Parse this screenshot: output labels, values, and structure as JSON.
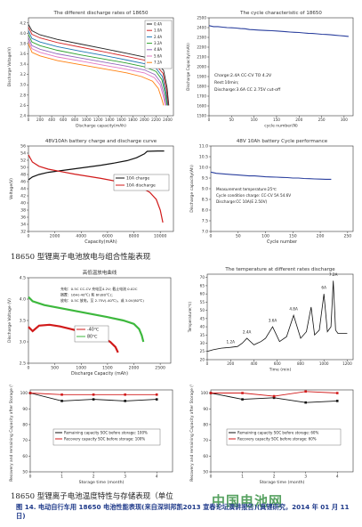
{
  "charts": {
    "c1": {
      "title": "The different discharge rates of 18650",
      "xlabel": "Discharge capacity(mAh)",
      "ylabel": "Discharge Voltage(V)",
      "xticks": [
        "0",
        "200",
        "400",
        "600",
        "800",
        "1000",
        "1200",
        "1400",
        "1600",
        "1800",
        "2000",
        "2200",
        "2400"
      ],
      "yticks": [
        "2.4",
        "2.6",
        "2.8",
        "3.0",
        "3.2",
        "3.4",
        "3.6",
        "3.8",
        "4.0",
        "4.2"
      ],
      "legend": [
        "0.4A",
        "1.0A",
        "2.4A",
        "3.2A",
        "4.8A",
        "5.6A",
        "7.2A"
      ],
      "colors": [
        "#222222",
        "#d62728",
        "#1f77b4",
        "#2ca02c",
        "#9467bd",
        "#e377c2",
        "#ff7f0e"
      ]
    },
    "c2": {
      "title": "The cycle characteristic of 18650",
      "xlabel": "cycle number(N)",
      "ylabel": "Discharge Capacity(mAh)",
      "xticks": [
        "0",
        "50",
        "100",
        "150",
        "200",
        "250",
        "300"
      ],
      "yticks": [
        "1500",
        "1600",
        "1700",
        "1800",
        "1900",
        "2000",
        "2100",
        "2200",
        "2300",
        "2400",
        "2500"
      ],
      "notes": [
        "Charge:2.4A CC-CV TO 4.2V",
        "Rest:10min;",
        "Discharge:3.6A CC 2.75V cut-off"
      ]
    },
    "c3": {
      "title": "48V10Ah battery charge and discharge curve",
      "xlabel": "Capacity(mAh)",
      "ylabel": "Voltage(V)",
      "xticks": [
        "0",
        "2000",
        "4000",
        "6000",
        "8000",
        "10000"
      ],
      "yticks": [
        "32",
        "34",
        "36",
        "38",
        "40",
        "42",
        "44",
        "46",
        "48",
        "50",
        "52",
        "54",
        "56"
      ],
      "legend": [
        "10A charge",
        "10A discharge"
      ]
    },
    "c4": {
      "title": "48V 10Ah battery Cycle performance",
      "xlabel": "Cycle number",
      "ylabel": "Discharge capacity(Ah)",
      "xticks": [
        "0",
        "50",
        "100",
        "150",
        "200",
        "250"
      ],
      "yticks": [
        "7.0",
        "7.5",
        "8.0",
        "8.5",
        "9.0",
        "9.5",
        "10.0",
        "10.5",
        "11.0"
      ],
      "notes": [
        "Measurement temperature:25℃",
        "Cycle condition charge: CC-CV 5A 54.6V",
        "Discharge:CC 10A(E 2.50V)"
      ]
    },
    "c5": {
      "title": "高低温放电曲线",
      "xlabel": "Discharge Capacity (mAh)",
      "ylabel": "Discharge Voltage (V)",
      "xticks": [
        "0",
        "500",
        "1000",
        "1500",
        "2000",
        "2500"
      ],
      "yticks": [
        "2.5",
        "3.0",
        "3.5",
        "4.0",
        "4.5"
      ],
      "legend": [
        "-40℃",
        "80℃"
      ],
      "notes": [
        "充电：0.5C CC-CV 充电至4.2V;  截止电流 0.02C",
        "搁置：16H(-40℃) 和 6h(80℃)；",
        "放电：0.5C 放电，至 2.75V(-40℃)，或 3.0V(80℃)"
      ]
    },
    "c6": {
      "title": "The temperature at different rates discharge",
      "xlabel": "Time (min)",
      "ylabel": "Temperature(℃)",
      "xticks": [
        "0",
        "200",
        "400",
        "600",
        "800",
        "1000",
        "1200"
      ],
      "yticks": [
        "20",
        "25",
        "30",
        "35",
        "40",
        "45",
        "50",
        "55",
        "60",
        "65",
        "70"
      ],
      "annotations": [
        "1.2A",
        "2.4A",
        "3.6A",
        "4.8A",
        "6A",
        "7.2A"
      ]
    },
    "c7": {
      "xlabel": "Storage time (month)",
      "ylabel": "Recovery and remaining Capacity after Storage (%)",
      "xticks": [
        "0",
        "1",
        "2",
        "3",
        "4"
      ],
      "yticks": [
        "50",
        "60",
        "70",
        "80",
        "90",
        "100"
      ],
      "legend": [
        "Remaining capacity SOC before storage: 100%",
        "Recovery  capacity SOC before storage: 100%"
      ]
    },
    "c8": {
      "xlabel": "Storage time (month)",
      "ylabel": "Recovery and remaining Capacity after Storage (%)",
      "xticks": [
        "0",
        "1",
        "2",
        "3",
        "4"
      ],
      "yticks": [
        "50",
        "60",
        "70",
        "80",
        "90",
        "100"
      ],
      "legend": [
        "Remaining capacity SOC before storage: 60%",
        "Recovery  capacity SOC before storage: 60%"
      ]
    }
  },
  "chart_data": [
    {
      "type": "line",
      "title": "The different discharge rates of 18650",
      "xlabel": "Discharge capacity(mAh)",
      "ylabel": "Discharge Voltage(V)",
      "xlim": [
        0,
        2500
      ],
      "ylim": [
        2.4,
        4.3
      ],
      "series": [
        {
          "name": "0.4A",
          "x": [
            0,
            60,
            200,
            500,
            900,
            1300,
            1700,
            2000,
            2200,
            2330,
            2390,
            2420
          ],
          "y": [
            4.17,
            4.05,
            3.97,
            3.88,
            3.79,
            3.7,
            3.61,
            3.54,
            3.44,
            3.28,
            2.95,
            2.6
          ]
        },
        {
          "name": "1.0A",
          "x": [
            0,
            60,
            200,
            500,
            900,
            1300,
            1700,
            2000,
            2200,
            2320,
            2380,
            2410
          ],
          "y": [
            4.12,
            3.98,
            3.91,
            3.82,
            3.73,
            3.64,
            3.55,
            3.48,
            3.38,
            3.22,
            2.9,
            2.6
          ]
        },
        {
          "name": "2.4A",
          "x": [
            0,
            60,
            200,
            500,
            900,
            1300,
            1700,
            2000,
            2200,
            2310,
            2370,
            2400
          ],
          "y": [
            4.05,
            3.9,
            3.83,
            3.74,
            3.65,
            3.57,
            3.48,
            3.41,
            3.32,
            3.16,
            2.85,
            2.6
          ]
        },
        {
          "name": "3.2A",
          "x": [
            0,
            60,
            200,
            500,
            900,
            1300,
            1700,
            2000,
            2200,
            2300,
            2360,
            2390
          ],
          "y": [
            3.98,
            3.83,
            3.76,
            3.67,
            3.58,
            3.5,
            3.42,
            3.35,
            3.26,
            3.1,
            2.82,
            2.6
          ]
        },
        {
          "name": "4.8A",
          "x": [
            0,
            60,
            200,
            500,
            900,
            1300,
            1700,
            2000,
            2180,
            2280,
            2340,
            2370
          ],
          "y": [
            3.92,
            3.76,
            3.69,
            3.6,
            3.52,
            3.44,
            3.36,
            3.29,
            3.2,
            3.05,
            2.8,
            2.6
          ]
        },
        {
          "name": "5.6A",
          "x": [
            0,
            60,
            200,
            500,
            900,
            1300,
            1700,
            2000,
            2170,
            2270,
            2330,
            2360
          ],
          "y": [
            3.86,
            3.7,
            3.63,
            3.54,
            3.46,
            3.38,
            3.3,
            3.23,
            3.14,
            3.0,
            2.76,
            2.6
          ]
        },
        {
          "name": "7.2A",
          "x": [
            0,
            60,
            200,
            500,
            900,
            1300,
            1700,
            1950,
            2140,
            2240,
            2300,
            2330
          ],
          "y": [
            3.8,
            3.63,
            3.56,
            3.47,
            3.39,
            3.31,
            3.23,
            3.16,
            3.07,
            2.93,
            2.72,
            2.6
          ]
        }
      ]
    },
    {
      "type": "line",
      "title": "The cycle characteristic of 18650",
      "xlabel": "cycle number(N)",
      "ylabel": "Discharge Capacity(mAh)",
      "xlim": [
        0,
        320
      ],
      "ylim": [
        1500,
        2500
      ],
      "series": [
        {
          "name": "",
          "x": [
            0,
            10,
            20,
            30,
            40,
            50,
            60,
            70,
            80,
            90,
            100,
            110,
            120,
            130,
            140,
            150,
            160,
            170,
            180,
            190,
            200,
            210,
            220,
            230,
            240,
            250,
            260,
            270,
            280,
            290,
            300,
            310
          ],
          "y": [
            2420,
            2410,
            2410,
            2405,
            2400,
            2398,
            2395,
            2390,
            2388,
            2380,
            2378,
            2375,
            2372,
            2370,
            2368,
            2365,
            2362,
            2358,
            2355,
            2352,
            2350,
            2345,
            2342,
            2340,
            2336,
            2332,
            2330,
            2326,
            2322,
            2318,
            2315,
            2310
          ]
        }
      ]
    },
    {
      "type": "line",
      "title": "48V10Ah battery charge and discharge curve",
      "xlabel": "Capacity(mAh)",
      "ylabel": "Voltage(V)",
      "xlim": [
        0,
        11000
      ],
      "ylim": [
        32,
        56
      ],
      "series": [
        {
          "name": "10A charge",
          "x": [
            0,
            300,
            800,
            1500,
            2500,
            3500,
            4500,
            5500,
            6500,
            7500,
            8200,
            8800,
            9000,
            9800,
            10300
          ],
          "y": [
            46.5,
            47.3,
            48.0,
            48.6,
            49.1,
            49.6,
            50.1,
            50.6,
            51.2,
            51.9,
            52.7,
            53.8,
            54.5,
            54.6,
            54.6
          ]
        },
        {
          "name": "10A discharge",
          "x": [
            0,
            300,
            800,
            1500,
            2500,
            3500,
            4500,
            5500,
            6500,
            7500,
            8500,
            9200,
            9700,
            10000,
            10200
          ],
          "y": [
            53.5,
            51.5,
            50.3,
            49.5,
            48.8,
            48.1,
            47.5,
            46.9,
            46.2,
            45.5,
            44.4,
            43.0,
            41.0,
            38.0,
            34.5
          ]
        }
      ]
    },
    {
      "type": "line",
      "title": "48V 10Ah battery Cycle performance",
      "xlabel": "Cycle number",
      "ylabel": "Discharge capacity(Ah)",
      "xlim": [
        0,
        260
      ],
      "ylim": [
        7.0,
        11.0
      ],
      "series": [
        {
          "name": "",
          "x": [
            0,
            10,
            20,
            30,
            40,
            50,
            60,
            70,
            80,
            90,
            100,
            110,
            120,
            130,
            140,
            150,
            160,
            170,
            180,
            190,
            200,
            210,
            220
          ],
          "y": [
            9.78,
            9.72,
            9.7,
            9.68,
            9.66,
            9.64,
            9.62,
            9.6,
            9.6,
            9.58,
            9.56,
            9.55,
            9.54,
            9.53,
            9.52,
            9.5,
            9.5,
            9.48,
            9.47,
            9.46,
            9.45,
            9.44,
            9.44
          ]
        }
      ]
    },
    {
      "type": "line",
      "title": "高低温放电曲线",
      "xlabel": "Discharge Capacity (mAh)",
      "ylabel": "Discharge Voltage (V)",
      "xlim": [
        0,
        2700
      ],
      "ylim": [
        2.5,
        4.5
      ],
      "series": [
        {
          "name": "-40℃",
          "x": [
            0,
            80,
            200,
            400,
            600,
            800,
            1000,
            1200,
            1400,
            1550,
            1650,
            1700
          ],
          "y": [
            3.35,
            3.25,
            3.38,
            3.4,
            3.36,
            3.3,
            3.24,
            3.18,
            3.1,
            3.0,
            2.88,
            2.75
          ]
        },
        {
          "name": "80℃",
          "x": [
            0,
            80,
            300,
            600,
            900,
            1200,
            1500,
            1800,
            2000,
            2100,
            2150,
            2180
          ],
          "y": [
            4.05,
            3.95,
            3.86,
            3.79,
            3.72,
            3.65,
            3.58,
            3.5,
            3.42,
            3.3,
            3.15,
            3.0
          ]
        }
      ]
    },
    {
      "type": "line",
      "title": "The temperature at different rates discharge",
      "xlabel": "Time (min)",
      "ylabel": "Temperature(℃)",
      "xlim": [
        0,
        1250
      ],
      "ylim": [
        20,
        72
      ],
      "series": [
        {
          "name": "",
          "x": [
            0,
            50,
            120,
            200,
            260,
            300,
            340,
            400,
            430,
            460,
            500,
            560,
            620,
            680,
            740,
            800,
            850,
            890,
            920,
            960,
            1000,
            1030,
            1060,
            1080,
            1100,
            1120,
            1200
          ],
          "y": [
            25,
            26,
            27,
            27.5,
            28,
            30,
            33,
            29,
            30,
            31,
            33,
            40,
            31,
            34,
            47,
            33,
            37,
            52,
            35,
            38,
            60,
            37,
            40,
            68,
            38,
            36,
            36
          ]
        }
      ]
    },
    {
      "type": "line",
      "xlabel": "Storage time (month)",
      "ylabel": "Recovery and remaining Capacity after Storage (%)",
      "xlim": [
        0,
        4.5
      ],
      "ylim": [
        50,
        102
      ],
      "series": [
        {
          "name": "Remaining capacity SOC before storage: 100%",
          "x": [
            0,
            1,
            2,
            3,
            4
          ],
          "y": [
            100,
            95,
            96,
            95,
            96
          ]
        },
        {
          "name": "Recovery  capacity SOC before storage: 100%",
          "x": [
            0,
            1,
            2,
            3,
            4
          ],
          "y": [
            100,
            99,
            99,
            99,
            99
          ]
        }
      ]
    },
    {
      "type": "line",
      "xlabel": "Storage time (month)",
      "ylabel": "Recovery and remaining Capacity after Storage (%)",
      "xlim": [
        0,
        4.5
      ],
      "ylim": [
        50,
        102
      ],
      "series": [
        {
          "name": "Remaining capacity SOC before storage: 60%",
          "x": [
            0,
            1,
            2,
            3,
            4
          ],
          "y": [
            100,
            96,
            97,
            94,
            95
          ]
        },
        {
          "name": "Recovery  capacity SOC before storage: 60%",
          "x": [
            0,
            1,
            2,
            3,
            4
          ],
          "y": [
            100,
            100,
            98,
            101,
            100
          ]
        }
      ]
    }
  ],
  "captions": {
    "cap1": "18650 型锂离子电池放电与组合性能表现",
    "cap2": "18650 型锂离子电池温度特性与存储表现（单位",
    "watermark": "中国电池网",
    "figure": "图 14. 电动自行车用 18650 电池性能表现(来自深圳邦凯2013 宣春论坛演讲报告)(真锂研究，2014 年 01 月 11 日)"
  }
}
